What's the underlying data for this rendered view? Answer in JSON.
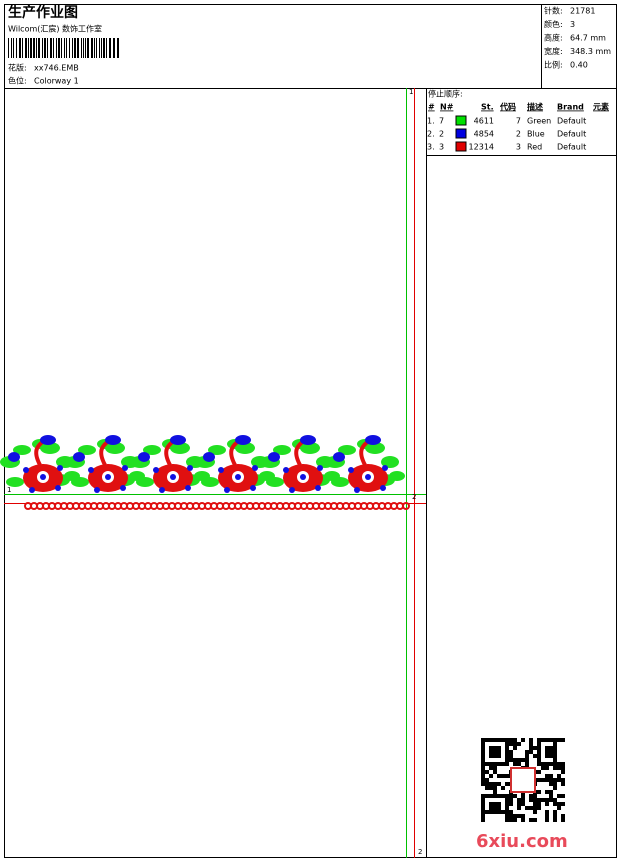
{
  "header": {
    "title": "生产作业图",
    "studio": "Wilcom(汇宸) 数饰工作室",
    "design_label": "花版:",
    "design": "xx746.EMB",
    "colorway_label": "色位:",
    "colorway": "Colorway 1"
  },
  "stats": [
    {
      "label": "针数:",
      "value": "21781"
    },
    {
      "label": "颜色:",
      "value": "3"
    },
    {
      "label": "高度:",
      "value": "64.7 mm"
    },
    {
      "label": "宽度:",
      "value": "348.3 mm"
    },
    {
      "label": "比例:",
      "value": "0.40"
    }
  ],
  "stop_sequence": {
    "title": "停止顺序:",
    "columns": [
      "#",
      "N#",
      "St.",
      "代码",
      "描述",
      "Brand",
      "元素"
    ],
    "rows": [
      {
        "index": "1.",
        "needle": "7",
        "color": "#00e000",
        "stitches": "4611",
        "code": "7",
        "description": "Green",
        "brand": "Default"
      },
      {
        "index": "2.",
        "needle": "2",
        "color": "#0000e0",
        "stitches": "4854",
        "code": "2",
        "description": "Blue",
        "brand": "Default"
      },
      {
        "index": "3.",
        "needle": "3",
        "color": "#e00000",
        "stitches": "12314",
        "code": "3",
        "description": "Red",
        "brand": "Default"
      }
    ]
  },
  "guides": {
    "vertical_top": "1",
    "vertical_bottom": "2",
    "horizontal_left": "1",
    "horizontal_right": "2"
  },
  "watermark": "6xiu.com"
}
